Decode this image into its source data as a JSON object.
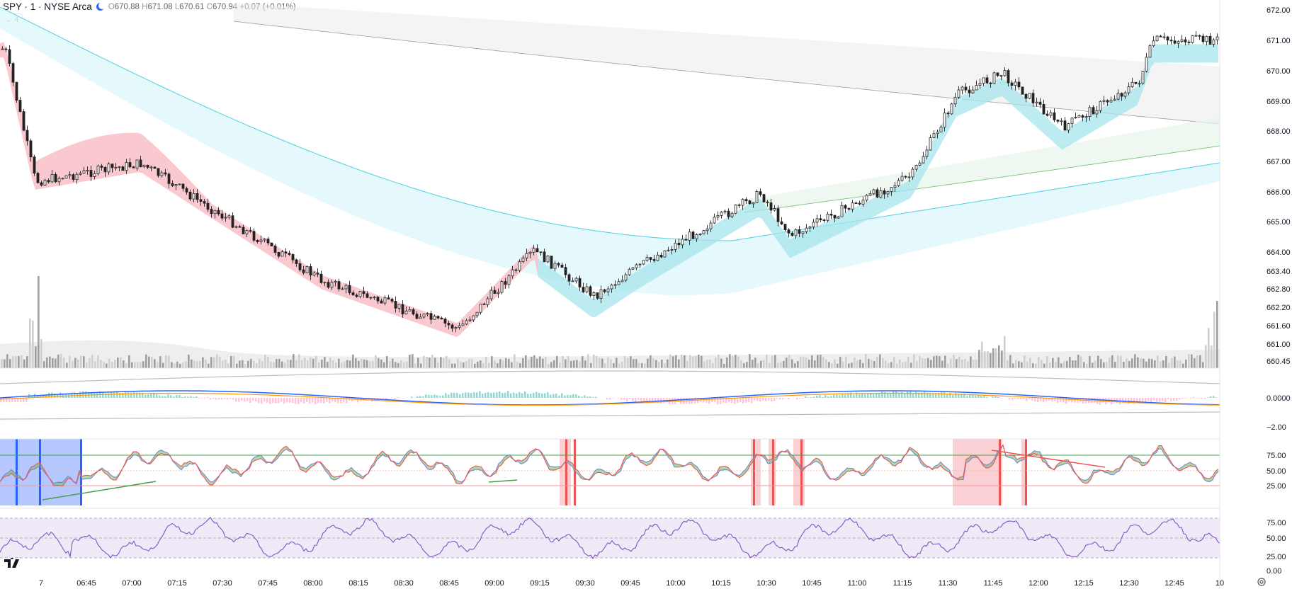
{
  "legend": {
    "symbol": "SPY · 1 · NYSE Arca",
    "open_label": "O",
    "open": "670.88",
    "high_label": "H",
    "high": "671.08",
    "low_label": "L",
    "low": "670.61",
    "close_label": "C",
    "close": "670.94",
    "change": "+0.07 (+0.01%)",
    "collapse_label": "4"
  },
  "price_axis": [
    "672.00",
    "671.00",
    "670.00",
    "669.00",
    "668.00",
    "667.00",
    "666.00",
    "665.00",
    "664.00",
    "663.40",
    "662.80",
    "662.20",
    "661.60",
    "661.00",
    "660.45"
  ],
  "macd_axis": [
    "0.0000",
    "−2.00"
  ],
  "stoch_axis": [
    "75.00",
    "50.00",
    "25.00"
  ],
  "rsi_axis": [
    "75.00",
    "50.00",
    "25.00",
    "0.00"
  ],
  "time_axis": [
    "7",
    "06:45",
    "07:00",
    "07:15",
    "07:30",
    "07:45",
    "08:00",
    "08:15",
    "08:30",
    "08:45",
    "09:00",
    "09:15",
    "09:30",
    "09:45",
    "10:00",
    "10:15",
    "10:30",
    "10:45",
    "11:00",
    "11:15",
    "11:30",
    "11:45",
    "12:00",
    "12:15",
    "12:30",
    "12:45",
    "10"
  ],
  "chart_data": {
    "type": "candlestick",
    "symbol": "SPY",
    "interval": "1",
    "exchange": "NYSE Arca",
    "price_range": [
      660.45,
      672.0
    ],
    "key_prices": [
      {
        "time": "06:30",
        "price": 670.7
      },
      {
        "time": "06:40",
        "price": 666.3
      },
      {
        "time": "07:15",
        "price": 666.9
      },
      {
        "time": "08:15",
        "price": 663.0
      },
      {
        "time": "09:00",
        "price": 661.4
      },
      {
        "time": "09:25",
        "price": 664.0
      },
      {
        "time": "09:45",
        "price": 662.5
      },
      {
        "time": "10:00",
        "price": 663.5
      },
      {
        "time": "10:40",
        "price": 665.9
      },
      {
        "time": "10:50",
        "price": 664.5
      },
      {
        "time": "11:30",
        "price": 666.5
      },
      {
        "time": "11:45",
        "price": 669.2
      },
      {
        "time": "12:00",
        "price": 669.9
      },
      {
        "time": "12:20",
        "price": 668.1
      },
      {
        "time": "12:45",
        "price": 669.6
      },
      {
        "time": "12:50",
        "price": 671.0
      }
    ],
    "panes": [
      "price",
      "volume",
      "macd",
      "stochastic",
      "rsi"
    ],
    "rsi_bands": [
      25,
      50,
      75
    ],
    "stoch_bands": [
      25,
      50,
      75
    ]
  },
  "colors": {
    "ema_fast_fill_bear": "#f8bcc3",
    "ema_fast_fill_bull": "#a6e5ec",
    "ema_mid_line": "#4dd0e1",
    "ema_slow_fill": "#ebebeb",
    "ema_long_line": "#4caf50",
    "rsi_line": "#7e57c2",
    "rsi_band": "#efe9f8"
  }
}
